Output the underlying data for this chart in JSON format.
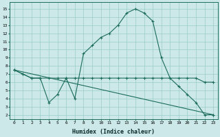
{
  "xlabel": "Humidex (Indice chaleur)",
  "background_color": "#cce8e8",
  "grid_color": "#99cccc",
  "line_color": "#1a6b5a",
  "x_ticks": [
    0,
    1,
    2,
    3,
    4,
    5,
    6,
    7,
    8,
    9,
    10,
    11,
    12,
    13,
    14,
    15,
    16,
    17,
    18,
    19,
    20,
    21,
    22,
    23
  ],
  "y_ticks": [
    2,
    3,
    4,
    5,
    6,
    7,
    8,
    9,
    10,
    11,
    12,
    13,
    14,
    15
  ],
  "ylim": [
    1.5,
    15.8
  ],
  "xlim": [
    -0.5,
    23.5
  ],
  "line1_x": [
    0,
    1,
    2,
    3,
    4,
    5,
    6,
    7,
    8,
    9,
    10,
    11,
    12,
    13,
    14,
    15,
    16,
    17,
    18,
    19,
    20,
    21,
    22,
    23
  ],
  "line1_y": [
    7.5,
    7.0,
    6.5,
    6.5,
    6.5,
    6.5,
    6.5,
    6.5,
    6.5,
    6.5,
    6.5,
    6.5,
    6.5,
    6.5,
    6.5,
    6.5,
    6.5,
    6.5,
    6.5,
    6.5,
    6.5,
    6.5,
    6.0,
    6.0
  ],
  "line2_x": [
    0,
    1,
    2,
    3,
    4,
    5,
    6,
    7,
    8,
    9,
    10,
    11,
    12,
    13,
    14,
    15,
    16,
    17,
    18,
    19,
    20,
    21,
    22,
    23
  ],
  "line2_y": [
    7.5,
    7.0,
    6.5,
    6.5,
    3.5,
    4.5,
    6.5,
    4.0,
    9.5,
    10.5,
    11.5,
    12.0,
    13.0,
    14.5,
    15.0,
    14.5,
    13.5,
    9.0,
    6.5,
    5.5,
    4.5,
    3.5,
    2.0,
    2.0
  ],
  "line3_x": [
    0,
    23
  ],
  "line3_y": [
    7.5,
    2.0
  ]
}
